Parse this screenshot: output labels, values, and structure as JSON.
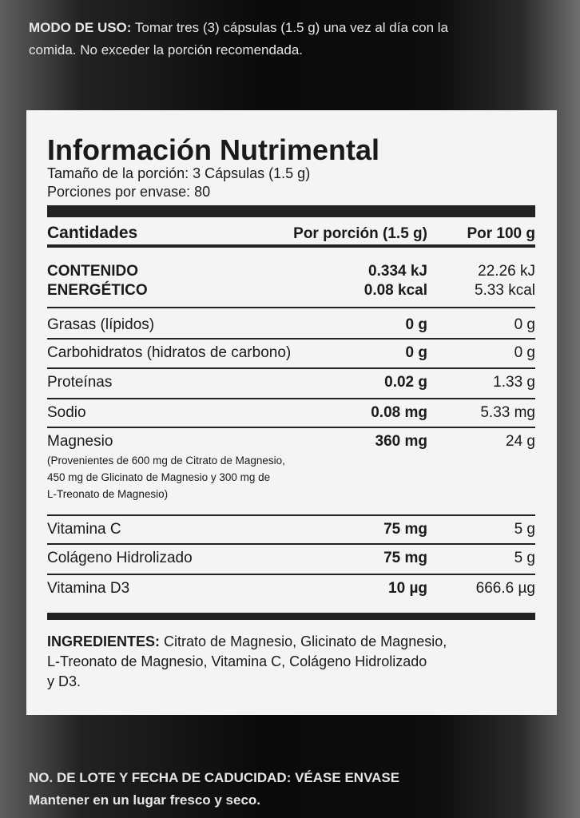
{
  "usage": {
    "label": "MODO DE USO:",
    "text_lines": [
      "Tomar tres (3) cápsulas (1.5 g) una vez al día con la",
      "comida. No exceder la porción recomendada."
    ]
  },
  "panel": {
    "title": "Información Nutrimental",
    "serving_size": "Tamaño de la porción: 3 Cápsulas (1.5 g)",
    "servings": "Porciones por envase: 80",
    "header": [
      "Cantidades",
      "Por porción (1.5 g)",
      "Por 100 g"
    ],
    "energy": {
      "name_lines": [
        "CONTENIDO",
        "ENERGÉTICO"
      ],
      "per_portion_lines": [
        "0.334 kJ",
        "0.08 kcal"
      ],
      "per_100g_lines": [
        "22.26 kJ",
        "5.33 kcal"
      ]
    },
    "rows": [
      [
        "Grasas (lípidos)",
        "0 g",
        "0 g"
      ],
      [
        "Carbohidratos (hidratos de carbono)",
        "0 g",
        "0 g"
      ],
      [
        "Proteínas",
        "0.02 g",
        "1.33 g"
      ],
      [
        "Sodio",
        "0.08 mg",
        "5.33 mg"
      ],
      [
        "Magnesio",
        "360 mg",
        "24 g"
      ],
      [
        "Vitamina C",
        "75 mg",
        "5 g"
      ],
      [
        "Colágeno Hidrolizado",
        "75 mg",
        "5 g"
      ],
      [
        "Vitamina D3",
        "10 µg",
        "666.6 µg"
      ]
    ],
    "magnesium_note_lines": [
      "(Provenientes de 600 mg de Citrato de Magnesio,",
      "450 mg de Glicinato de Magnesio y 300 mg de",
      "L-Treonato de Magnesio)"
    ],
    "ingredients": {
      "label": "INGREDIENTES:",
      "text_lines": [
        "Citrato de Magnesio, Glicinato de Magnesio,",
        "L-Treonato de Magnesio, Vitamina C, Colágeno Hidrolizado",
        "y D3."
      ]
    }
  },
  "footer": {
    "lot": "NO. DE LOTE Y FECHA DE CADUCIDAD: VÉASE ENVASE",
    "storage": "Mantener en un lugar fresco y seco."
  }
}
